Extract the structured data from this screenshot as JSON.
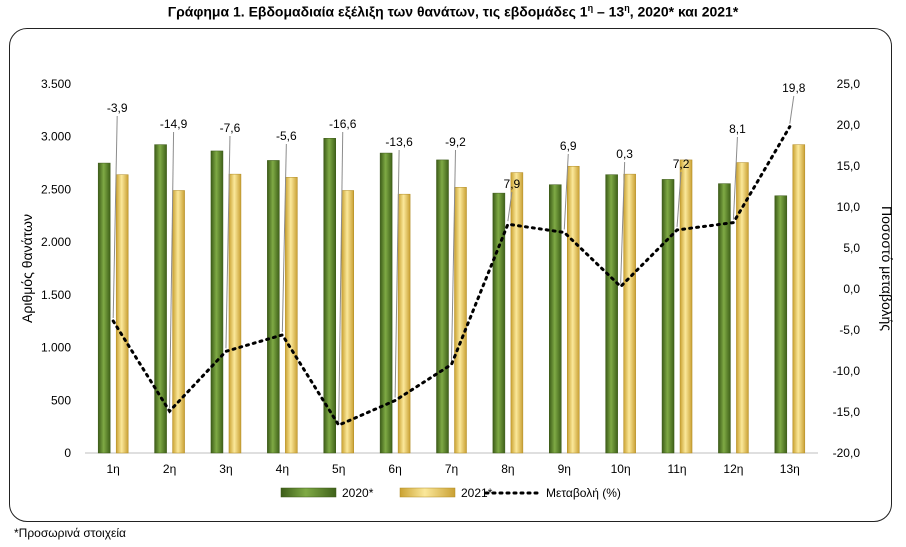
{
  "title": {
    "main": "Γράφημα 1.  Εβδομαδιαία εξέλιξη των θανάτων, τις εβδομάδες 1",
    "sup1": "η",
    "dash": " – 13",
    "sup2": "η",
    "tail": ", 2020* και 2021*"
  },
  "footnote": "*Προσωρινά στοιχεία",
  "chart_data": {
    "type": "bar",
    "categories": [
      "1η",
      "2η",
      "3η",
      "4η",
      "5η",
      "6η",
      "7η",
      "8η",
      "9η",
      "10η",
      "11η",
      "12η",
      "13η"
    ],
    "series": [
      {
        "name": "2020*",
        "type": "bar",
        "axis": "left",
        "color": "#5e8a2a",
        "values": [
          2750,
          2925,
          2865,
          2775,
          2985,
          2845,
          2780,
          2465,
          2545,
          2640,
          2595,
          2555,
          2440
        ]
      },
      {
        "name": "2021*",
        "type": "bar",
        "axis": "left",
        "color": "#e9c75a",
        "values": [
          2640,
          2490,
          2645,
          2615,
          2490,
          2455,
          2520,
          2660,
          2720,
          2645,
          2780,
          2755,
          2925
        ]
      },
      {
        "name": "Μεταβολή (%)",
        "type": "line",
        "axis": "right",
        "style": "dotted",
        "color": "#000000",
        "values": [
          -3.9,
          -14.9,
          -7.6,
          -5.6,
          -16.6,
          -13.6,
          -9.2,
          7.9,
          6.9,
          0.3,
          7.2,
          8.1,
          19.8
        ],
        "labels": [
          "-3,9",
          "-14,9",
          "-7,6",
          "-5,6",
          "-16,6",
          "-13,6",
          "-9,2",
          "7,9",
          "6,9",
          "0,3",
          "7,2",
          "8,1",
          "19,8"
        ]
      }
    ],
    "ylabel": "Αριθμός θανάτων",
    "y2label": "Ποσοστό μεταβολής",
    "ylim": [
      0,
      3500
    ],
    "y2lim": [
      -20,
      25
    ],
    "yticks": [
      0,
      500,
      1000,
      1500,
      2000,
      2500,
      3000,
      3500
    ],
    "ytick_labels": [
      "0",
      "500",
      "1.000",
      "1.500",
      "2.000",
      "2.500",
      "3.000",
      "3.500"
    ],
    "y2ticks": [
      -20,
      -15,
      -10,
      -5,
      0,
      5,
      10,
      15,
      20,
      25
    ],
    "y2tick_labels": [
      "-20,0",
      "-15,0",
      "-10,0",
      "-5,0",
      "0,0",
      "5,0",
      "10,0",
      "15,0",
      "20,0",
      "25,0"
    ],
    "grid": false,
    "legend": "bottom"
  }
}
